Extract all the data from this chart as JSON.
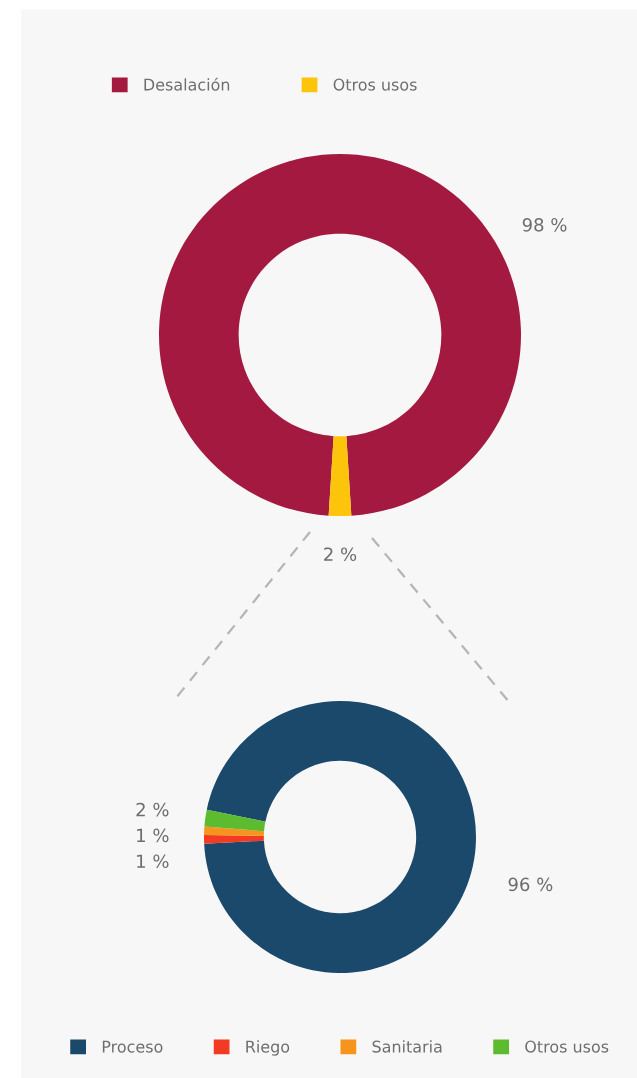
{
  "chart_data": [
    {
      "type": "donut",
      "categories": [
        "Desalación",
        "Otros usos"
      ],
      "values": [
        98,
        2
      ],
      "colors": [
        "#a3193f",
        "#fcc50c"
      ],
      "value_labels": [
        "98 %",
        "2 %"
      ],
      "legend": "top"
    },
    {
      "type": "donut",
      "categories": [
        "Proceso",
        "Riego",
        "Sanitaria",
        "Otros usos"
      ],
      "values": [
        96,
        1,
        1,
        2
      ],
      "colors": [
        "#1b496b",
        "#f23b22",
        "#f7941d",
        "#5cbb2e"
      ],
      "value_labels": [
        "96 %",
        "1 %",
        "1 %",
        "2 %"
      ],
      "legend": "bottom"
    }
  ]
}
